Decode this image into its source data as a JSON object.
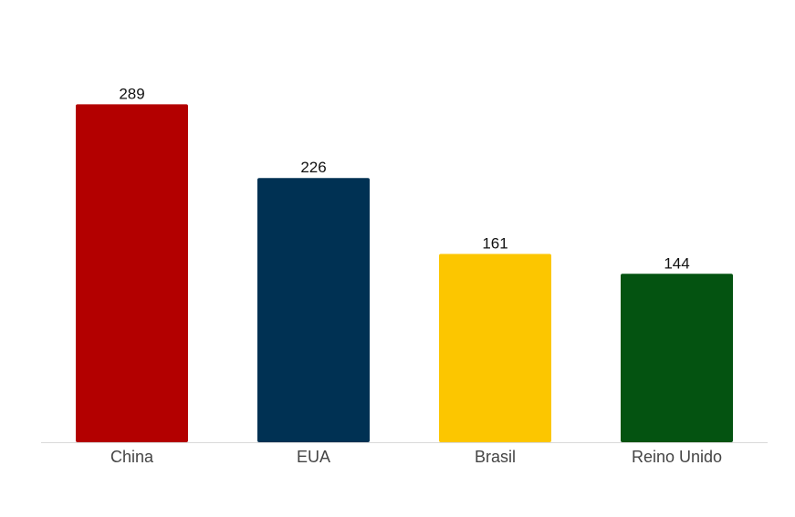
{
  "chart_data": {
    "type": "bar",
    "categories": [
      "China",
      "EUA",
      "Brasil",
      "Reino Unido"
    ],
    "values": [
      289,
      226,
      161,
      144
    ],
    "colors": [
      "#b30000",
      "#003153",
      "#fcc600",
      "#045311"
    ],
    "title": "",
    "xlabel": "",
    "ylabel": "",
    "ylim": [
      0,
      300
    ],
    "grid": false,
    "legend": "none",
    "show_value_labels": true,
    "axis_line_color": "#d9d9d9"
  }
}
